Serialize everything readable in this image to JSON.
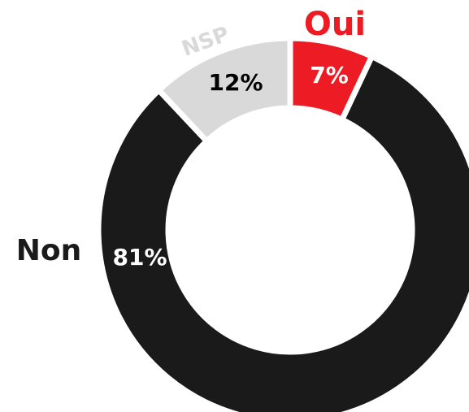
{
  "chart_data": {
    "type": "pie",
    "categories": [
      "Oui",
      "Non",
      "NSP"
    ],
    "values": [
      7,
      81,
      12
    ],
    "value_labels": [
      "7%",
      "81%",
      "12%"
    ],
    "colors": [
      "#ed1c24",
      "#1a1a1a",
      "#d9d9d9"
    ],
    "donut": true
  }
}
